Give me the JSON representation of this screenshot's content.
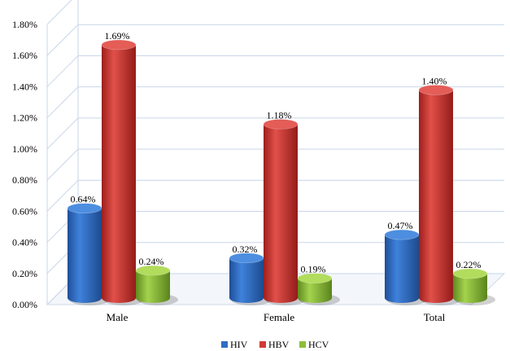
{
  "chart_data": {
    "type": "bar",
    "categories": [
      "Male",
      "Female",
      "Total"
    ],
    "series": [
      {
        "name": "HIV",
        "values": [
          0.64,
          0.32,
          0.47
        ],
        "labels": [
          "0.64%",
          "0.32%",
          "0.47%"
        ],
        "color": "#2e6dc4"
      },
      {
        "name": "HBV",
        "values": [
          1.69,
          1.18,
          1.4
        ],
        "labels": [
          "1.69%",
          "1.18%",
          "1.40%"
        ],
        "color": "#d23a35"
      },
      {
        "name": "HCV",
        "values": [
          0.24,
          0.19,
          0.22
        ],
        "labels": [
          "0.24%",
          "0.19%",
          "0.22%"
        ],
        "color": "#8cbd3a"
      }
    ],
    "yticks": [
      "0.00%",
      "0.20%",
      "0.40%",
      "0.60%",
      "0.80%",
      "1.00%",
      "1.20%",
      "1.40%",
      "1.60%",
      "1.80%"
    ],
    "ylim": [
      0,
      1.8
    ],
    "grid": true,
    "legend_position": "bottom"
  }
}
